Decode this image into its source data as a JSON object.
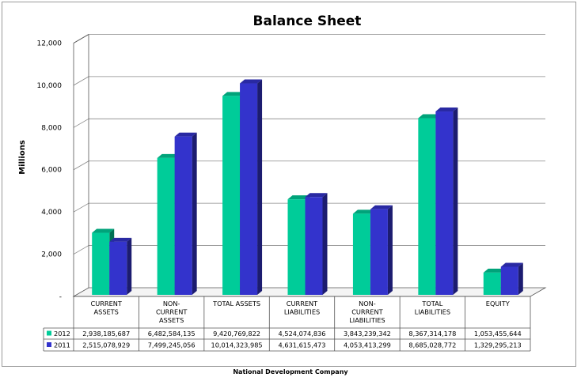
{
  "footer": "National Development Company",
  "colors": {
    "s2012": "#00cc99",
    "s2011": "#3333cc",
    "grid": "#888888",
    "axis": "#555555"
  },
  "chart_data": {
    "type": "bar",
    "title": "Balance Sheet",
    "ylabel": "Millions",
    "ylim": [
      0,
      12000
    ],
    "yticks": [
      0,
      2000,
      4000,
      6000,
      8000,
      10000,
      12000
    ],
    "ytick_labels": [
      "-",
      "2,000",
      "4,000",
      "6,000",
      "8,000",
      "10,000",
      "12,000"
    ],
    "grid": true,
    "legend": "data-table",
    "categories": [
      [
        "CURRENT",
        "ASSETS"
      ],
      [
        "NON-",
        "CURRENT",
        "ASSETS"
      ],
      [
        "TOTAL  ASSETS"
      ],
      [
        "CURRENT",
        "LIABILITIES"
      ],
      [
        "NON-",
        "CURRENT",
        "LIABILITIES"
      ],
      [
        "TOTAL",
        "LIABILITIES"
      ],
      [
        "EQUITY"
      ]
    ],
    "series": [
      {
        "name": "2012",
        "values": [
          2938.185687,
          6482.584135,
          9420.769822,
          4524.074836,
          3843.239342,
          8367.314178,
          1053.455644
        ],
        "labels": [
          "2,938,185,687",
          "6,482,584,135",
          "9,420,769,822",
          "4,524,074,836",
          "3,843,239,342",
          "8,367,314,178",
          "1,053,455,644"
        ]
      },
      {
        "name": "2011",
        "values": [
          2515.078929,
          7499.245056,
          10014.323985,
          4631.615473,
          4053.413299,
          8685.028772,
          1329.295213
        ],
        "labels": [
          "2,515,078,929",
          "7,499,245,056",
          "10,014,323,985",
          "4,631,615,473",
          "4,053,413,299",
          "8,685,028,772",
          "1,329,295,213"
        ]
      }
    ]
  }
}
